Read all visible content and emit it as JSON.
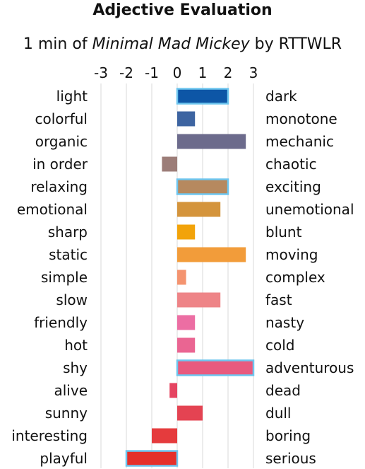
{
  "title": "Adjective Evaluation",
  "subtitle": {
    "prefix": "1 min of ",
    "work": "Minimal Mad Mickey",
    "suffix": " by RTTWLR"
  },
  "chart_data": {
    "type": "bar",
    "orientation": "horizontal-diverging",
    "xlim": [
      -3,
      3
    ],
    "x_ticks": [
      "-3",
      "-2",
      "-1",
      "0",
      "1",
      "2",
      "3"
    ],
    "grid": true,
    "rows": [
      {
        "left": "light",
        "right": "dark",
        "value": 2.0,
        "color": "#0d56a6",
        "highlight": true
      },
      {
        "left": "colorful",
        "right": "monotone",
        "value": 0.7,
        "color": "#3d64a1",
        "highlight": false
      },
      {
        "left": "organic",
        "right": "mechanic",
        "value": 2.7,
        "color": "#6c6b8c",
        "highlight": false
      },
      {
        "left": "in order",
        "right": "chaotic",
        "value": -0.6,
        "color": "#9c7d78",
        "highlight": false
      },
      {
        "left": "relaxing",
        "right": "exciting",
        "value": 2.0,
        "color": "#b6895f",
        "highlight": true
      },
      {
        "left": "emotional",
        "right": "unemotional",
        "value": 1.7,
        "color": "#d4943c",
        "highlight": false
      },
      {
        "left": "sharp",
        "right": "blunt",
        "value": 0.7,
        "color": "#f2a30a",
        "highlight": false
      },
      {
        "left": "static",
        "right": "moving",
        "value": 2.7,
        "color": "#f29c3a",
        "highlight": false
      },
      {
        "left": "simple",
        "right": "complex",
        "value": 0.35,
        "color": "#f49470",
        "highlight": false
      },
      {
        "left": "slow",
        "right": "fast",
        "value": 1.7,
        "color": "#ee8487",
        "highlight": false
      },
      {
        "left": "friendly",
        "right": "nasty",
        "value": 0.7,
        "color": "#ec6ea3",
        "highlight": false
      },
      {
        "left": "hot",
        "right": "cold",
        "value": 0.7,
        "color": "#ea6592",
        "highlight": false
      },
      {
        "left": "shy",
        "right": "adventurous",
        "value": 3.0,
        "color": "#e85a7e",
        "highlight": true
      },
      {
        "left": "alive",
        "right": "dead",
        "value": -0.3,
        "color": "#e54461",
        "highlight": false
      },
      {
        "left": "sunny",
        "right": "dull",
        "value": 1.0,
        "color": "#e44352",
        "highlight": false
      },
      {
        "left": "interesting",
        "right": "boring",
        "value": -1.0,
        "color": "#e53b3d",
        "highlight": false
      },
      {
        "left": "playful",
        "right": "serious",
        "value": -2.0,
        "color": "#e5302a",
        "highlight": true
      }
    ],
    "highlight_border_color": "#6ec6ef",
    "grid_color": "#d9d9d9"
  }
}
